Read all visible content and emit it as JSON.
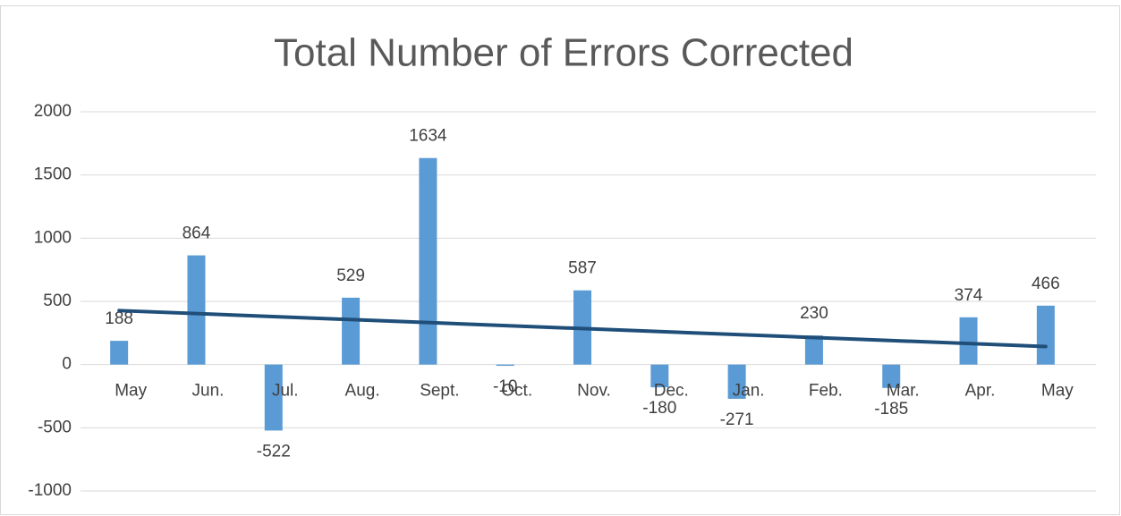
{
  "chart_data": {
    "type": "bar",
    "title": "Total Number of Errors Corrected",
    "categories": [
      "May",
      "Jun.",
      "Jul.",
      "Aug.",
      "Sept.",
      "Oct.",
      "Nov.",
      "Dec.",
      "Jan.",
      "Feb.",
      "Mar.",
      "Apr.",
      "May"
    ],
    "values": [
      188,
      864,
      -522,
      529,
      1634,
      -10,
      587,
      -180,
      -271,
      230,
      -185,
      374,
      466
    ],
    "color": "#5b9bd5",
    "ylim": [
      -1000,
      2000
    ],
    "yticks": [
      -1000,
      -500,
      0,
      500,
      1000,
      1500,
      2000
    ],
    "grid": true,
    "trendline": "linear",
    "trendline_color": "#1f4e79"
  }
}
